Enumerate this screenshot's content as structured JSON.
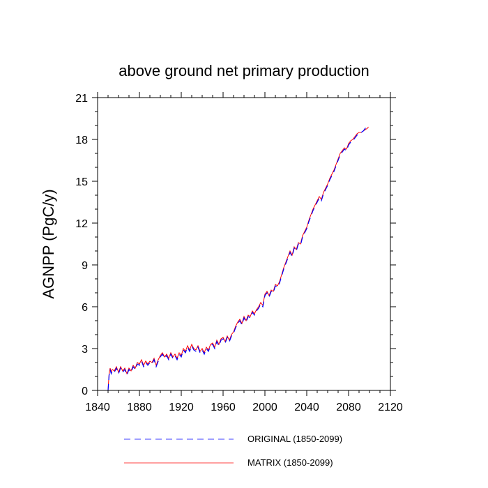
{
  "chart_data": {
    "type": "line",
    "title": "above ground net primary production",
    "xlabel": "",
    "ylabel": "AGNPP  (PgC/y)",
    "xlim": [
      1840,
      2120
    ],
    "ylim": [
      0,
      21
    ],
    "xticks": [
      1840,
      1880,
      1920,
      1960,
      2000,
      2040,
      2080,
      2120
    ],
    "yticks": [
      0,
      3,
      6,
      9,
      12,
      15,
      18,
      21
    ],
    "legend_position": "bottom",
    "series": [
      {
        "name": "ORIGINAL (1850-2099)",
        "color": "#0000ff",
        "style": "dashed",
        "x": [
          1850,
          1851,
          1852,
          1853,
          1854,
          1856,
          1858,
          1860,
          1862,
          1864,
          1866,
          1868,
          1870,
          1872,
          1874,
          1876,
          1878,
          1880,
          1882,
          1884,
          1886,
          1888,
          1890,
          1892,
          1894,
          1896,
          1898,
          1900,
          1902,
          1904,
          1906,
          1908,
          1910,
          1912,
          1914,
          1916,
          1918,
          1920,
          1922,
          1924,
          1926,
          1928,
          1930,
          1932,
          1934,
          1936,
          1938,
          1940,
          1942,
          1944,
          1946,
          1948,
          1950,
          1952,
          1954,
          1956,
          1958,
          1960,
          1962,
          1964,
          1966,
          1968,
          1970,
          1972,
          1974,
          1976,
          1978,
          1980,
          1982,
          1984,
          1986,
          1988,
          1990,
          1992,
          1994,
          1996,
          1998,
          2000,
          2002,
          2004,
          2006,
          2008,
          2010,
          2012,
          2014,
          2016,
          2018,
          2020,
          2022,
          2024,
          2026,
          2028,
          2030,
          2032,
          2034,
          2036,
          2038,
          2040,
          2042,
          2044,
          2046,
          2048,
          2050,
          2052,
          2054,
          2056,
          2058,
          2060,
          2062,
          2064,
          2066,
          2068,
          2070,
          2072,
          2074,
          2076,
          2078,
          2080,
          2082,
          2084,
          2086,
          2088,
          2090,
          2092,
          2094,
          2096,
          2098,
          2099
        ],
        "values": [
          0.0,
          1.1,
          1.5,
          1.2,
          1.4,
          1.3,
          1.6,
          1.2,
          1.6,
          1.3,
          1.5,
          1.1,
          1.5,
          1.3,
          1.7,
          1.5,
          1.9,
          1.8,
          2.1,
          1.7,
          2.0,
          1.8,
          2.0,
          1.9,
          2.2,
          1.7,
          2.1,
          2.4,
          2.6,
          2.3,
          2.5,
          2.2,
          2.6,
          2.3,
          2.5,
          2.2,
          2.6,
          2.4,
          2.9,
          2.7,
          3.1,
          2.8,
          3.2,
          2.9,
          2.8,
          3.1,
          2.7,
          2.9,
          2.6,
          3.0,
          2.8,
          3.2,
          3.3,
          3.0,
          3.5,
          3.2,
          3.6,
          3.7,
          3.4,
          3.8,
          3.5,
          3.9,
          4.1,
          4.5,
          4.8,
          5.0,
          4.7,
          5.2,
          4.9,
          5.3,
          5.2,
          5.6,
          5.4,
          5.7,
          5.9,
          6.2,
          6.0,
          6.8,
          7.0,
          6.7,
          7.1,
          7.0,
          7.5,
          7.4,
          7.7,
          8.2,
          8.7,
          9.1,
          9.5,
          9.9,
          9.6,
          10.2,
          10.0,
          10.5,
          10.4,
          11.0,
          11.3,
          11.6,
          12.1,
          12.5,
          12.9,
          13.2,
          13.5,
          13.8,
          13.6,
          14.1,
          14.4,
          14.7,
          15.1,
          15.4,
          15.7,
          16.1,
          16.5,
          16.9,
          17.1,
          17.3,
          17.2,
          17.6,
          17.8,
          17.9,
          18.1,
          18.3,
          18.4,
          18.5,
          18.6,
          18.8,
          18.9,
          19.0
        ]
      },
      {
        "name": "MATRIX (1850-2099)",
        "color": "#ff0000",
        "style": "solid",
        "x": [
          1850,
          1851,
          1852,
          1853,
          1854,
          1856,
          1858,
          1860,
          1862,
          1864,
          1866,
          1868,
          1870,
          1872,
          1874,
          1876,
          1878,
          1880,
          1882,
          1884,
          1886,
          1888,
          1890,
          1892,
          1894,
          1896,
          1898,
          1900,
          1902,
          1904,
          1906,
          1908,
          1910,
          1912,
          1914,
          1916,
          1918,
          1920,
          1922,
          1924,
          1926,
          1928,
          1930,
          1932,
          1934,
          1936,
          1938,
          1940,
          1942,
          1944,
          1946,
          1948,
          1950,
          1952,
          1954,
          1956,
          1958,
          1960,
          1962,
          1964,
          1966,
          1968,
          1970,
          1972,
          1974,
          1976,
          1978,
          1980,
          1982,
          1984,
          1986,
          1988,
          1990,
          1992,
          1994,
          1996,
          1998,
          2000,
          2002,
          2004,
          2006,
          2008,
          2010,
          2012,
          2014,
          2016,
          2018,
          2020,
          2022,
          2024,
          2026,
          2028,
          2030,
          2032,
          2034,
          2036,
          2038,
          2040,
          2042,
          2044,
          2046,
          2048,
          2050,
          2052,
          2054,
          2056,
          2058,
          2060,
          2062,
          2064,
          2066,
          2068,
          2070,
          2072,
          2074,
          2076,
          2078,
          2080,
          2082,
          2084,
          2086,
          2088,
          2090,
          2092,
          2094,
          2096,
          2098,
          2099
        ],
        "values": [
          0.0,
          1.2,
          1.6,
          1.3,
          1.5,
          1.4,
          1.7,
          1.3,
          1.7,
          1.4,
          1.6,
          1.2,
          1.6,
          1.4,
          1.8,
          1.6,
          2.0,
          1.9,
          2.2,
          1.8,
          2.1,
          1.9,
          2.1,
          2.0,
          2.3,
          1.8,
          2.2,
          2.5,
          2.7,
          2.4,
          2.6,
          2.3,
          2.7,
          2.4,
          2.6,
          2.3,
          2.7,
          2.5,
          3.0,
          2.8,
          3.2,
          2.9,
          3.3,
          3.0,
          2.9,
          3.2,
          2.8,
          3.0,
          2.7,
          3.1,
          2.9,
          3.3,
          3.4,
          3.1,
          3.6,
          3.3,
          3.7,
          3.8,
          3.5,
          3.9,
          3.6,
          4.0,
          4.2,
          4.6,
          4.9,
          5.1,
          4.8,
          5.3,
          5.0,
          5.4,
          5.3,
          5.7,
          5.5,
          5.8,
          6.0,
          6.3,
          6.1,
          6.9,
          7.1,
          6.8,
          7.2,
          7.1,
          7.6,
          7.5,
          7.8,
          8.3,
          8.8,
          9.2,
          9.6,
          10.0,
          9.7,
          10.3,
          10.1,
          10.6,
          10.5,
          11.1,
          11.4,
          11.7,
          12.2,
          12.6,
          13.0,
          13.3,
          13.6,
          13.9,
          13.7,
          14.2,
          14.5,
          14.8,
          15.2,
          15.5,
          15.8,
          16.2,
          16.6,
          17.0,
          17.2,
          17.4,
          17.3,
          17.7,
          17.9,
          18.0,
          18.2,
          18.4,
          18.5,
          18.5,
          18.6,
          18.7,
          18.8,
          18.9
        ]
      }
    ]
  }
}
